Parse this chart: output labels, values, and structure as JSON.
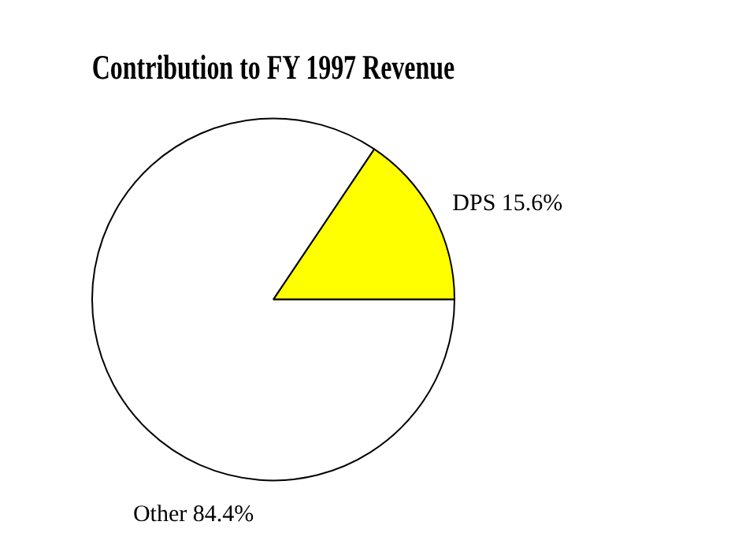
{
  "chart_data": {
    "type": "pie",
    "title": "Contribution to FY 1997 Revenue",
    "categories": [
      "DPS",
      "Other"
    ],
    "values": [
      15.6,
      84.4
    ],
    "colors": [
      "#ffff00",
      "#ffffff"
    ],
    "value_labels": [
      "15.6%",
      "84.4%"
    ]
  }
}
